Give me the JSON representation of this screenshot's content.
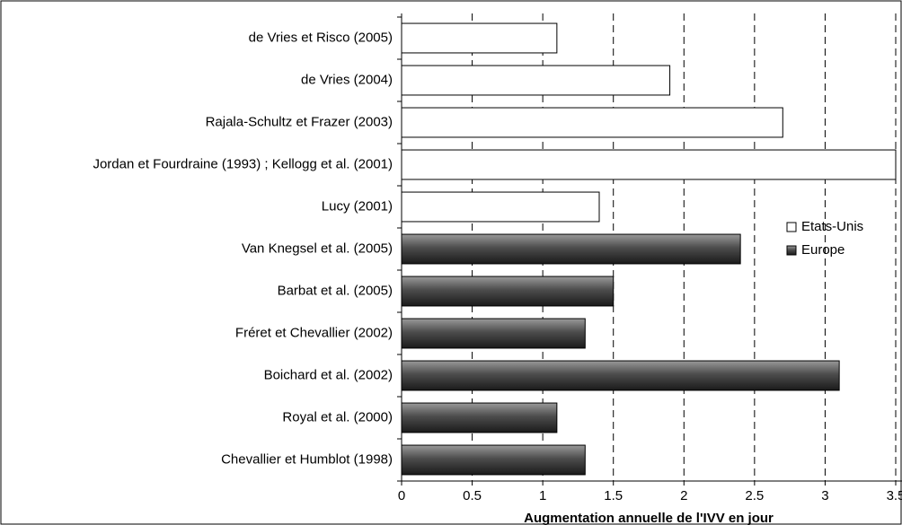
{
  "chart_data": {
    "type": "barh",
    "xlabel": "Augmentation annuelle de l'IVV en jour",
    "categories": [
      "de Vries et Risco (2005)",
      "de Vries (2004)",
      "Rajala-Schultz et Frazer (2003)",
      "Jordan et Fourdraine (1993) ; Kellogg et al. (2001)",
      "Lucy (2001)",
      "Van Knegsel et al. (2005)",
      "Barbat et al. (2005)",
      "Fréret et Chevallier (2002)",
      "Boichard et al. (2002)",
      "Royal et al. (2000)",
      "Chevallier et Humblot (1998)"
    ],
    "series": [
      {
        "name": "Etats-Unis",
        "color": "#ffffff",
        "values": [
          1.1,
          1.9,
          2.7,
          3.5,
          1.4,
          null,
          null,
          null,
          null,
          null,
          null
        ]
      },
      {
        "name": "Europe",
        "color": "#4d4d4d",
        "values": [
          null,
          null,
          null,
          null,
          null,
          2.4,
          1.5,
          1.3,
          3.1,
          1.1,
          1.3
        ]
      }
    ],
    "xlim": [
      0,
      3.5
    ],
    "xticks": [
      0,
      0.5,
      1,
      1.5,
      2,
      2.5,
      3,
      3.5
    ],
    "grid": true,
    "legend": "right"
  }
}
